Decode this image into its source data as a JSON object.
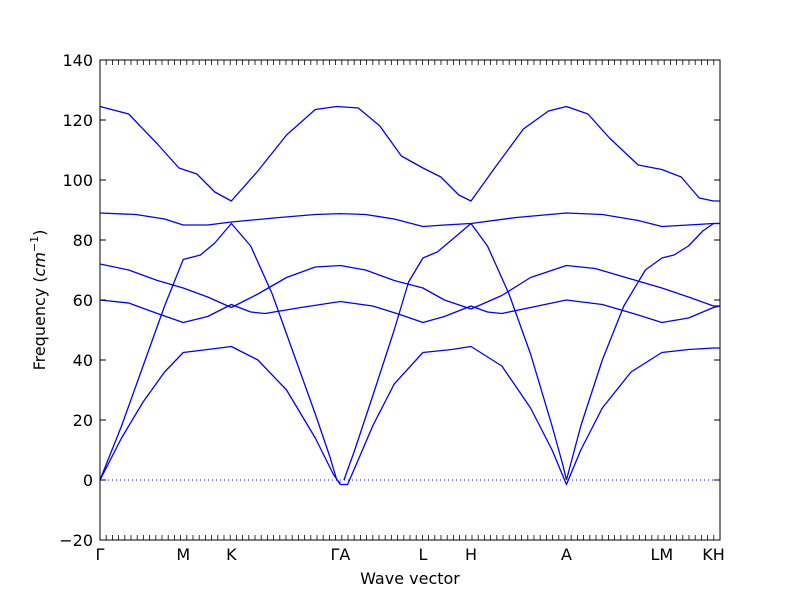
{
  "chart_data": {
    "type": "line",
    "title": "",
    "xlabel": "Wave vector",
    "ylabel": "Frequency (cm⁻¹)",
    "ylabel_parts": {
      "text": "Frequency (",
      "unit": "cm",
      "exponent": "−1",
      "close": ")"
    },
    "ylim": [
      -20,
      140
    ],
    "yticks": [
      -20,
      0,
      20,
      40,
      60,
      80,
      100,
      120,
      140
    ],
    "xlim": [
      0,
      8.64
    ],
    "grid": false,
    "legend": "none",
    "colors": {
      "bands": "#0000ff",
      "zero_line": "#0000ff",
      "axes": "#000000"
    },
    "zero_line": {
      "y": 0,
      "style": "dotted"
    },
    "high_symmetry_points": [
      {
        "label": "Γ",
        "x": 0
      },
      {
        "label": "M",
        "x": 1.16
      },
      {
        "label": "K",
        "x": 1.83
      },
      {
        "label": "ΓA",
        "x": 3.35
      },
      {
        "label": "L",
        "x": 4.5
      },
      {
        "label": "H",
        "x": 5.17
      },
      {
        "label": "A",
        "x": 6.5
      },
      {
        "label": "LM",
        "x": 7.83
      },
      {
        "label": "KH",
        "x": 8.55
      }
    ],
    "series": [
      {
        "values": [
          [
            0,
            124.5
          ],
          [
            0.4,
            122
          ],
          [
            0.8,
            112
          ],
          [
            1.1,
            104
          ],
          [
            1.35,
            102
          ],
          [
            1.6,
            96
          ],
          [
            1.83,
            93
          ],
          [
            2.2,
            103
          ],
          [
            2.6,
            115
          ],
          [
            3.0,
            123.5
          ],
          [
            3.3,
            124.5
          ],
          [
            3.6,
            124
          ],
          [
            3.9,
            118
          ],
          [
            4.2,
            108
          ],
          [
            4.5,
            104
          ],
          [
            4.75,
            101
          ],
          [
            5.0,
            95
          ],
          [
            5.17,
            93
          ],
          [
            5.5,
            104
          ],
          [
            5.9,
            117
          ],
          [
            6.25,
            123
          ],
          [
            6.5,
            124.5
          ],
          [
            6.8,
            122
          ],
          [
            7.1,
            114
          ],
          [
            7.5,
            105
          ],
          [
            7.83,
            103.5
          ],
          [
            8.1,
            101
          ],
          [
            8.35,
            94
          ],
          [
            8.55,
            93
          ],
          [
            8.64,
            93
          ]
        ]
      },
      {
        "values": [
          [
            0,
            89
          ],
          [
            0.5,
            88.5
          ],
          [
            0.9,
            87
          ],
          [
            1.16,
            85
          ],
          [
            1.5,
            85
          ],
          [
            1.83,
            86
          ],
          [
            2.5,
            87.5
          ],
          [
            3.0,
            88.5
          ],
          [
            3.35,
            88.8
          ],
          [
            3.7,
            88.5
          ],
          [
            4.1,
            87
          ],
          [
            4.5,
            84.5
          ],
          [
            4.8,
            85
          ],
          [
            5.17,
            85.5
          ],
          [
            5.8,
            87.5
          ],
          [
            6.5,
            89
          ],
          [
            7.0,
            88.5
          ],
          [
            7.5,
            86.5
          ],
          [
            7.83,
            84.5
          ],
          [
            8.2,
            85
          ],
          [
            8.55,
            85.5
          ],
          [
            8.64,
            85.5
          ]
        ]
      },
      {
        "values": [
          [
            0,
            0
          ],
          [
            0.3,
            18
          ],
          [
            0.6,
            38
          ],
          [
            0.9,
            58
          ],
          [
            1.16,
            73.5
          ],
          [
            1.4,
            75
          ],
          [
            1.6,
            79
          ],
          [
            1.83,
            85.5
          ],
          [
            2.1,
            78
          ],
          [
            2.4,
            62
          ],
          [
            2.7,
            42
          ],
          [
            3.0,
            22
          ],
          [
            3.2,
            8
          ],
          [
            3.3,
            0
          ],
          [
            3.35,
            -1
          ]
        ]
      },
      {
        "values": [
          [
            3.4,
            0
          ],
          [
            3.55,
            10
          ],
          [
            3.8,
            28
          ],
          [
            4.1,
            50
          ],
          [
            4.3,
            66
          ],
          [
            4.5,
            74
          ],
          [
            4.7,
            76
          ],
          [
            4.9,
            80
          ],
          [
            5.17,
            85.5
          ],
          [
            5.4,
            78
          ],
          [
            5.7,
            62
          ],
          [
            6.0,
            42
          ],
          [
            6.3,
            18
          ],
          [
            6.45,
            5
          ],
          [
            6.5,
            0
          ]
        ]
      },
      {
        "values": [
          [
            6.5,
            0
          ],
          [
            6.7,
            18
          ],
          [
            7.0,
            40
          ],
          [
            7.3,
            58
          ],
          [
            7.6,
            70
          ],
          [
            7.83,
            74
          ],
          [
            8.0,
            75
          ],
          [
            8.2,
            78
          ],
          [
            8.4,
            83
          ],
          [
            8.55,
            85.5
          ],
          [
            8.64,
            85.5
          ]
        ]
      },
      {
        "values": [
          [
            0,
            72
          ],
          [
            0.4,
            70
          ],
          [
            0.8,
            66.5
          ],
          [
            1.16,
            64
          ],
          [
            1.5,
            61
          ],
          [
            1.83,
            57.5
          ],
          [
            2.2,
            62
          ],
          [
            2.6,
            67.5
          ],
          [
            3.0,
            71
          ],
          [
            3.35,
            71.5
          ],
          [
            3.7,
            70
          ],
          [
            4.1,
            66.5
          ],
          [
            4.5,
            64
          ],
          [
            4.8,
            60
          ],
          [
            5.17,
            57
          ],
          [
            5.6,
            61.5
          ],
          [
            6.0,
            67.5
          ],
          [
            6.5,
            71.5
          ],
          [
            6.9,
            70.5
          ],
          [
            7.4,
            67
          ],
          [
            7.83,
            64
          ],
          [
            8.2,
            61
          ],
          [
            8.55,
            58
          ],
          [
            8.64,
            58
          ]
        ]
      },
      {
        "values": [
          [
            0,
            60
          ],
          [
            0.4,
            59
          ],
          [
            0.8,
            55.5
          ],
          [
            1.16,
            52.5
          ],
          [
            1.5,
            54.5
          ],
          [
            1.83,
            58.5
          ],
          [
            2.1,
            56
          ],
          [
            2.3,
            55.5
          ],
          [
            2.8,
            57.5
          ],
          [
            3.35,
            59.5
          ],
          [
            3.8,
            58
          ],
          [
            4.2,
            55
          ],
          [
            4.5,
            52.5
          ],
          [
            4.8,
            54.5
          ],
          [
            5.17,
            58
          ],
          [
            5.4,
            56
          ],
          [
            5.6,
            55.5
          ],
          [
            6.0,
            57.5
          ],
          [
            6.5,
            60
          ],
          [
            7.0,
            58.5
          ],
          [
            7.5,
            55
          ],
          [
            7.83,
            52.5
          ],
          [
            8.2,
            54
          ],
          [
            8.55,
            57.5
          ],
          [
            8.64,
            58
          ]
        ]
      },
      {
        "values": [
          [
            0,
            0
          ],
          [
            0.3,
            14
          ],
          [
            0.6,
            26
          ],
          [
            0.9,
            36
          ],
          [
            1.16,
            42.5
          ],
          [
            1.5,
            43.5
          ],
          [
            1.83,
            44.5
          ],
          [
            2.2,
            40
          ],
          [
            2.6,
            30
          ],
          [
            3.0,
            14
          ],
          [
            3.25,
            2
          ],
          [
            3.35,
            -1.5
          ],
          [
            3.45,
            -1.5
          ],
          [
            3.55,
            4
          ],
          [
            3.8,
            18
          ],
          [
            4.1,
            32
          ],
          [
            4.5,
            42.5
          ],
          [
            4.9,
            43.5
          ],
          [
            5.17,
            44.5
          ],
          [
            5.6,
            38
          ],
          [
            6.0,
            24
          ],
          [
            6.3,
            10
          ],
          [
            6.5,
            -1.5
          ],
          [
            6.7,
            10
          ],
          [
            7.0,
            24
          ],
          [
            7.4,
            36
          ],
          [
            7.83,
            42.5
          ],
          [
            8.2,
            43.5
          ],
          [
            8.55,
            44
          ],
          [
            8.64,
            44
          ]
        ]
      }
    ]
  }
}
